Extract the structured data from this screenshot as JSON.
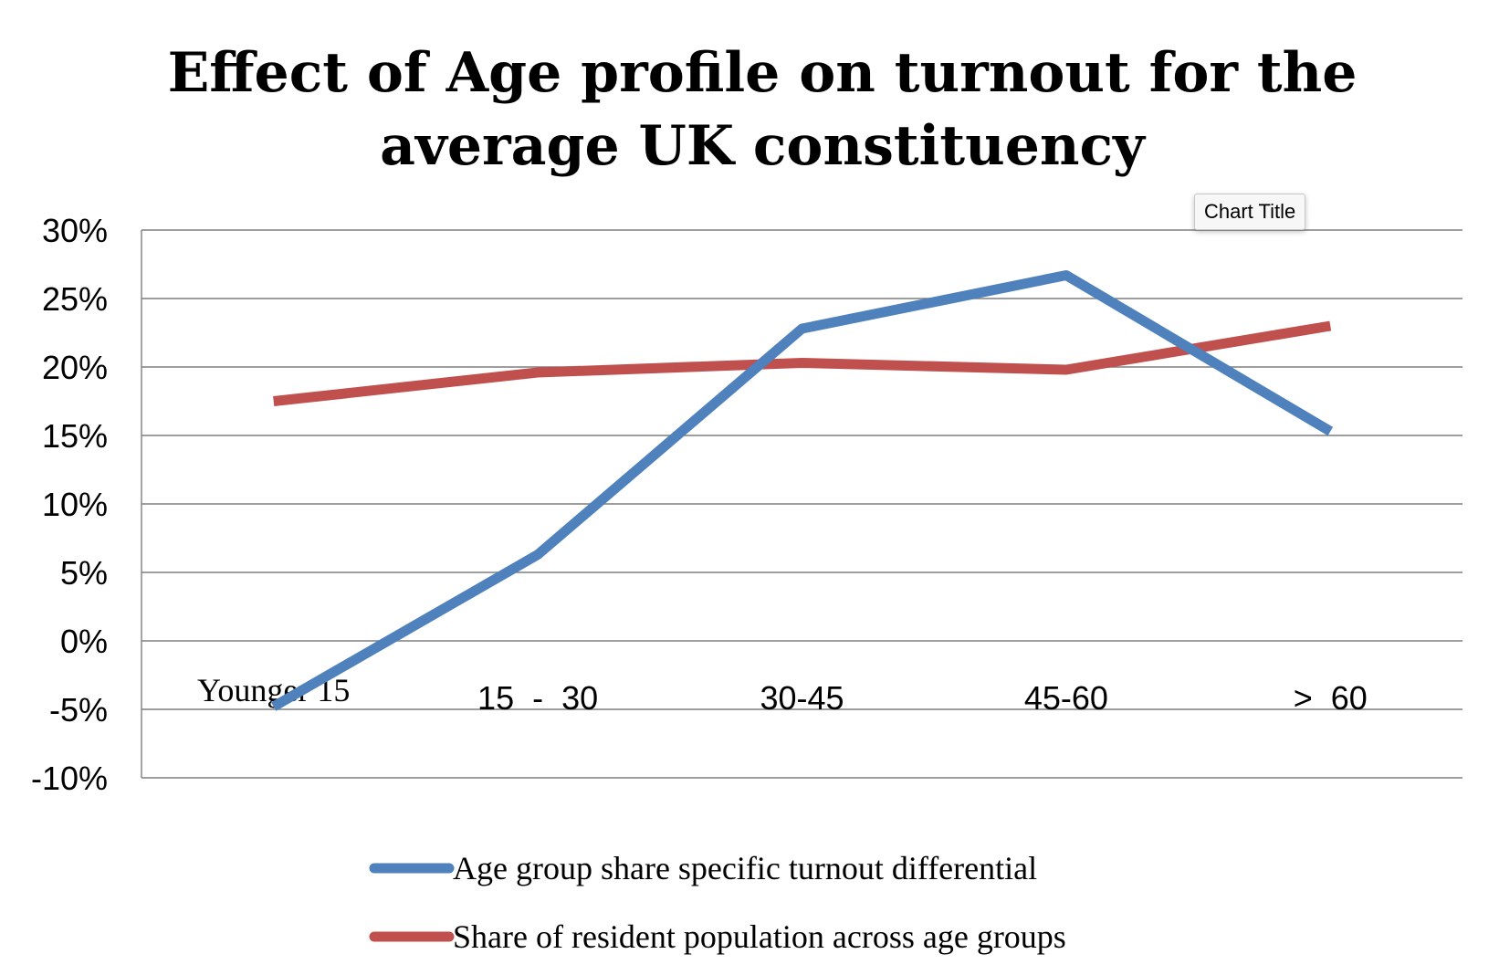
{
  "chart_data": {
    "type": "line",
    "title": "Effect of Age profile on turnout for the average UK constituency",
    "title_lines": [
      "Effect of Age profile on turnout for the",
      "average UK constituency"
    ],
    "categories": [
      "Younger 15",
      "15  -  30",
      "30-45",
      "45-60",
      ">  60"
    ],
    "y_ticks": [
      "30%",
      "25%",
      "20%",
      "15%",
      "10%",
      "5%",
      "0%",
      "-5%",
      "-10%"
    ],
    "ylim": [
      -10,
      30
    ],
    "y_step": 5,
    "grid": true,
    "legend_position": "bottom",
    "series": [
      {
        "name": "Age group share specific turnout differential",
        "color": "#4F81BD",
        "values": [
          -4.8,
          6.3,
          22.8,
          26.7,
          15.3
        ]
      },
      {
        "name": "Share of resident population across age groups",
        "color": "#C0504D",
        "values": [
          17.5,
          19.6,
          20.3,
          19.8,
          23.0
        ]
      }
    ]
  },
  "tooltip": {
    "label": "Chart Title"
  }
}
